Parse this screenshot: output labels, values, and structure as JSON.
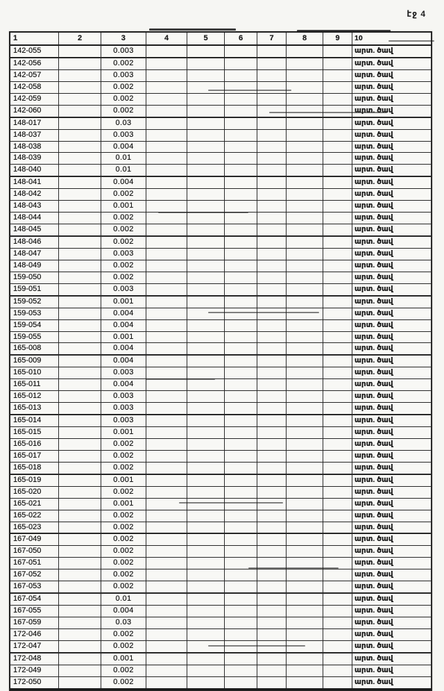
{
  "page": {
    "label": "էջ 4"
  },
  "colors": {
    "paper": "#f6f6f3",
    "ink": "#161616",
    "border": "#262626"
  },
  "table": {
    "columns": [
      "1",
      "2",
      "3",
      "4",
      "5",
      "6",
      "7",
      "8",
      "9",
      "10"
    ],
    "rows": [
      {
        "id": "142-055",
        "value": "0.003",
        "note": "արտ. ծավ"
      },
      {
        "id": "142-056",
        "value": "0.002",
        "note": "արտ. ծավ"
      },
      {
        "id": "142-057",
        "value": "0.003",
        "note": "արտ. ծավ"
      },
      {
        "id": "142-058",
        "value": "0.002",
        "note": "արտ. ծավ"
      },
      {
        "id": "142-059",
        "value": "0.002",
        "note": "արտ. ծավ"
      },
      {
        "id": "142-060",
        "value": "0.002",
        "note": "արտ. ծավ"
      },
      {
        "id": "148-017",
        "value": "0.03",
        "note": "արտ. ծավ"
      },
      {
        "id": "148-037",
        "value": "0.003",
        "note": "արտ. ծավ"
      },
      {
        "id": "148-038",
        "value": "0.004",
        "note": "արտ. ծավ"
      },
      {
        "id": "148-039",
        "value": "0.01",
        "note": "արտ. ծավ"
      },
      {
        "id": "148-040",
        "value": "0.01",
        "note": "արտ. ծավ"
      },
      {
        "id": "148-041",
        "value": "0.004",
        "note": "արտ. ծավ"
      },
      {
        "id": "148-042",
        "value": "0.002",
        "note": "արտ. ծավ"
      },
      {
        "id": "148-043",
        "value": "0.001",
        "note": "արտ. ծավ"
      },
      {
        "id": "148-044",
        "value": "0.002",
        "note": "արտ. ծավ"
      },
      {
        "id": "148-045",
        "value": "0.002",
        "note": "արտ. ծավ"
      },
      {
        "id": "148-046",
        "value": "0.002",
        "note": "արտ. ծավ"
      },
      {
        "id": "148-047",
        "value": "0.003",
        "note": "արտ. ծավ"
      },
      {
        "id": "148-049",
        "value": "0.002",
        "note": "արտ. ծավ"
      },
      {
        "id": "159-050",
        "value": "0.002",
        "note": "արտ. ծավ"
      },
      {
        "id": "159-051",
        "value": "0.003",
        "note": "արտ. ծավ"
      },
      {
        "id": "159-052",
        "value": "0.001",
        "note": "արտ. ծավ"
      },
      {
        "id": "159-053",
        "value": "0.004",
        "note": "արտ. ծավ"
      },
      {
        "id": "159-054",
        "value": "0.004",
        "note": "արտ. ծավ"
      },
      {
        "id": "159-055",
        "value": "0.001",
        "note": "արտ. ծավ"
      },
      {
        "id": "165-008",
        "value": "0.004",
        "note": "արտ. ծավ"
      },
      {
        "id": "165-009",
        "value": "0.004",
        "note": "արտ. ծավ"
      },
      {
        "id": "165-010",
        "value": "0.003",
        "note": "արտ. ծավ"
      },
      {
        "id": "165-011",
        "value": "0.004",
        "note": "արտ. ծավ"
      },
      {
        "id": "165-012",
        "value": "0.003",
        "note": "արտ. ծավ"
      },
      {
        "id": "165-013",
        "value": "0.003",
        "note": "արտ. ծավ"
      },
      {
        "id": "165-014",
        "value": "0.003",
        "note": "արտ. ծավ"
      },
      {
        "id": "165-015",
        "value": "0.001",
        "note": "արտ. ծավ"
      },
      {
        "id": "165-016",
        "value": "0.002",
        "note": "արտ. ծավ"
      },
      {
        "id": "165-017",
        "value": "0.002",
        "note": "արտ. ծավ"
      },
      {
        "id": "165-018",
        "value": "0.002",
        "note": "արտ. ծավ"
      },
      {
        "id": "165-019",
        "value": "0.001",
        "note": "արտ. ծավ"
      },
      {
        "id": "165-020",
        "value": "0.002",
        "note": "արտ. ծավ"
      },
      {
        "id": "165-021",
        "value": "0.001",
        "note": "արտ. ծավ"
      },
      {
        "id": "165-022",
        "value": "0.002",
        "note": "արտ. ծավ"
      },
      {
        "id": "165-023",
        "value": "0.002",
        "note": "արտ. ծավ"
      },
      {
        "id": "167-049",
        "value": "0.002",
        "note": "արտ. ծավ"
      },
      {
        "id": "167-050",
        "value": "0.002",
        "note": "արտ. ծավ"
      },
      {
        "id": "167-051",
        "value": "0.002",
        "note": "արտ. ծավ"
      },
      {
        "id": "167-052",
        "value": "0.002",
        "note": "արտ. ծավ"
      },
      {
        "id": "167-053",
        "value": "0.002",
        "note": "արտ. ծավ"
      },
      {
        "id": "167-054",
        "value": "0.01",
        "note": "արտ. ծավ"
      },
      {
        "id": "167-055",
        "value": "0.004",
        "note": "արտ. ծավ"
      },
      {
        "id": "167-059",
        "value": "0.03",
        "note": "արտ. ծավ"
      },
      {
        "id": "172-046",
        "value": "0.002",
        "note": "արտ. ծավ"
      },
      {
        "id": "172-047",
        "value": "0.002",
        "note": "արտ. ծավ"
      },
      {
        "id": "172-048",
        "value": "0.001",
        "note": "արտ. ծավ"
      },
      {
        "id": "172-049",
        "value": "0.002",
        "note": "արտ. ծավ"
      },
      {
        "id": "172-050",
        "value": "0.002",
        "note": "արտ. ծավ"
      }
    ]
  }
}
